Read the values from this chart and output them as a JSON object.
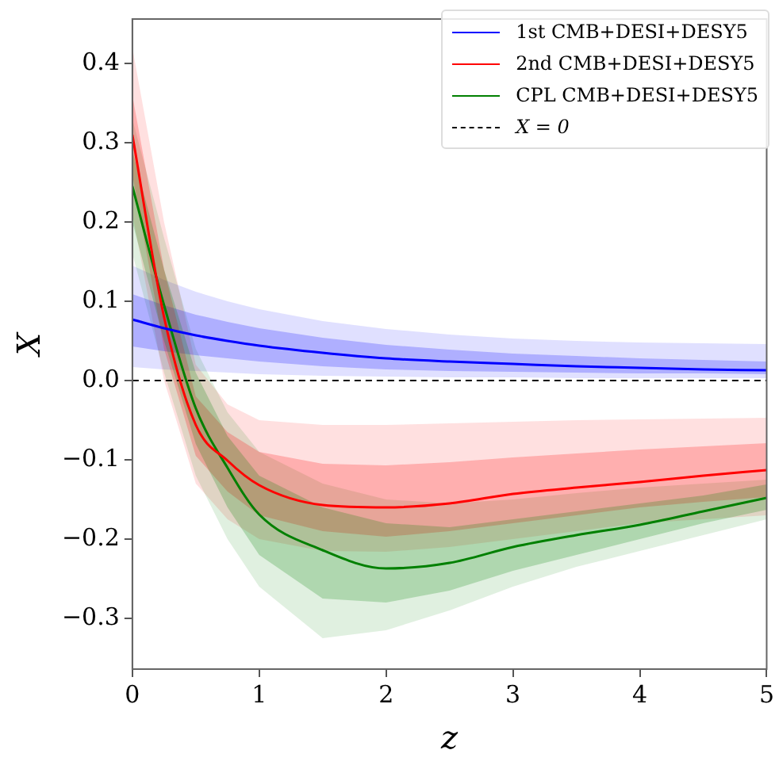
{
  "chart_data": {
    "type": "line",
    "xlabel": "z",
    "ylabel": "X",
    "x": [
      0,
      0.25,
      0.5,
      0.75,
      1,
      1.5,
      2,
      2.5,
      3,
      3.5,
      4,
      4.5,
      5
    ],
    "series": [
      {
        "name": "1st CMB+DESI+DESY5",
        "color": "#0000ff",
        "values": [
          0.077,
          0.066,
          0.057,
          0.05,
          0.044,
          0.035,
          0.028,
          0.024,
          0.021,
          0.018,
          0.016,
          0.014,
          0.013
        ],
        "lower": [
          0.043,
          0.037,
          0.032,
          0.028,
          0.024,
          0.018,
          0.014,
          0.012,
          0.011,
          0.01,
          0.009,
          0.009,
          0.008
        ],
        "upper": [
          0.109,
          0.095,
          0.083,
          0.074,
          0.066,
          0.054,
          0.045,
          0.039,
          0.034,
          0.031,
          0.028,
          0.026,
          0.024
        ]
      },
      {
        "name": "2nd CMB+DESI+DESY5",
        "color": "#ff0000",
        "values": [
          0.31,
          0.08,
          -0.056,
          -0.101,
          -0.132,
          -0.157,
          -0.16,
          -0.155,
          -0.143,
          -0.135,
          -0.128,
          -0.12,
          -0.113
        ],
        "lower": [
          0.26,
          0.04,
          -0.095,
          -0.14,
          -0.17,
          -0.19,
          -0.197,
          -0.19,
          -0.18,
          -0.17,
          -0.16,
          -0.153,
          -0.147
        ],
        "upper": [
          0.36,
          0.14,
          -0.02,
          -0.065,
          -0.09,
          -0.105,
          -0.107,
          -0.103,
          -0.097,
          -0.092,
          -0.087,
          -0.083,
          -0.079
        ]
      },
      {
        "name": "CPL CMB+DESI+DESY5",
        "color": "#008000",
        "values": [
          0.245,
          0.095,
          -0.035,
          -0.11,
          -0.169,
          -0.214,
          -0.237,
          -0.23,
          -0.21,
          -0.195,
          -0.182,
          -0.165,
          -0.148
        ],
        "lower": [
          0.2,
          0.05,
          -0.08,
          -0.16,
          -0.22,
          -0.275,
          -0.28,
          -0.265,
          -0.24,
          -0.22,
          -0.2,
          -0.18,
          -0.163
        ],
        "upper": [
          0.29,
          0.14,
          0.01,
          -0.07,
          -0.12,
          -0.16,
          -0.18,
          -0.185,
          -0.175,
          -0.165,
          -0.155,
          -0.145,
          -0.131
        ]
      },
      {
        "color": "#0000ff",
        "values": [
          null,
          null,
          null,
          null,
          null,
          null,
          null,
          null,
          null,
          null,
          null,
          null,
          null
        ],
        "lower": [
          0.017,
          0.014,
          0.012,
          0.01,
          0.008,
          0.006,
          0.005,
          0.004,
          0.004,
          0.003,
          0.003,
          0.003,
          0.003
        ],
        "upper": [
          0.145,
          0.127,
          0.112,
          0.1,
          0.09,
          0.075,
          0.065,
          0.058,
          0.053,
          0.05,
          0.048,
          0.047,
          0.046
        ]
      },
      {
        "color": "#ff0000",
        "values": [
          null,
          null,
          null,
          null,
          null,
          null,
          null,
          null,
          null,
          null,
          null,
          null,
          null
        ],
        "lower": [
          0.21,
          0.0,
          -0.13,
          -0.175,
          -0.2,
          -0.215,
          -0.216,
          -0.21,
          -0.2,
          -0.19,
          -0.18,
          -0.175,
          -0.17
        ],
        "upper": [
          0.42,
          0.2,
          0.02,
          -0.03,
          -0.05,
          -0.056,
          -0.056,
          -0.054,
          -0.052,
          -0.05,
          -0.049,
          -0.048,
          -0.047
        ]
      },
      {
        "color": "#008000",
        "values": [
          null,
          null,
          null,
          null,
          null,
          null,
          null,
          null,
          null,
          null,
          null,
          null,
          null
        ],
        "lower": [
          0.16,
          0.01,
          -0.12,
          -0.2,
          -0.26,
          -0.325,
          -0.315,
          -0.29,
          -0.26,
          -0.235,
          -0.215,
          -0.195,
          -0.175
        ],
        "upper": [
          0.33,
          0.18,
          0.04,
          -0.04,
          -0.09,
          -0.13,
          -0.15,
          -0.155,
          -0.15,
          -0.142,
          -0.135,
          -0.13,
          -0.125
        ]
      }
    ],
    "ref_lines": [
      {
        "axis": "y",
        "value": 0,
        "label": "X = 0",
        "color": "#000000",
        "line_style": "dashed"
      }
    ],
    "xlim": [
      0,
      5
    ],
    "xticks": [
      0,
      1,
      2,
      3,
      4,
      5
    ],
    "ylim": [
      -0.364,
      0.456
    ],
    "yticks": [
      -0.3,
      -0.2,
      -0.1,
      {
        "value": 0,
        "label": "0.0"
      },
      0.1,
      0.2,
      0.3,
      0.4
    ],
    "legend": "top right",
    "grid": false,
    "marker": "none",
    "line_style": "solid"
  }
}
